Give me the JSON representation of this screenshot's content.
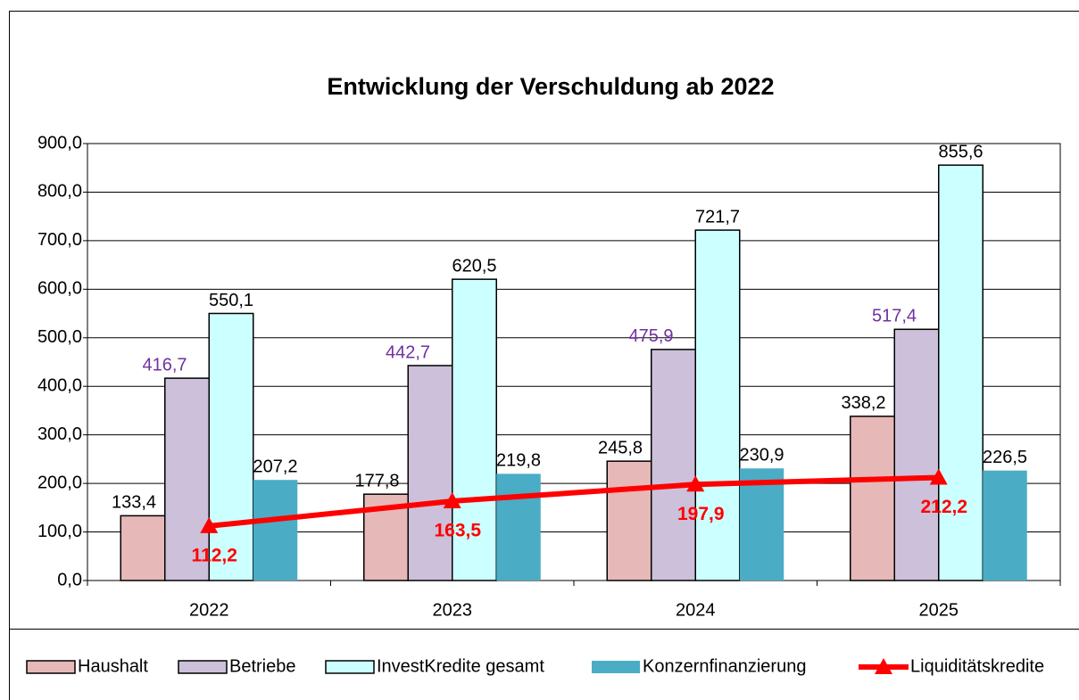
{
  "chart_data": {
    "type": "bar",
    "title": "Entwicklung der Verschuldung ab 2022",
    "categories": [
      "2022",
      "2023",
      "2024",
      "2025"
    ],
    "series": [
      {
        "name": "Haushalt",
        "color": "#e6b8b7",
        "outline": "#000000",
        "label_color": "#000000",
        "values": [
          133.4,
          177.8,
          245.8,
          338.2
        ],
        "value_labels": [
          "133,4",
          "177,8",
          "245,8",
          "338,2"
        ]
      },
      {
        "name": "Betriebe",
        "color": "#ccc0da",
        "outline": "#000000",
        "label_color": "#7030a0",
        "values": [
          416.7,
          442.7,
          475.9,
          517.4
        ],
        "value_labels": [
          "416,7",
          "442,7",
          "475,9",
          "517,4"
        ]
      },
      {
        "name": "InvestKredite gesamt",
        "color": "#ccffff",
        "outline": "#000000",
        "label_color": "#000000",
        "values": [
          550.1,
          620.5,
          721.7,
          855.6
        ],
        "value_labels": [
          "550,1",
          "620,5",
          "721,7",
          "855,6"
        ]
      },
      {
        "name": "Konzernfinanzierung",
        "color": "#4bacc6",
        "label_color": "#000000",
        "values": [
          207.2,
          219.8,
          230.9,
          226.5
        ],
        "value_labels": [
          "207,2",
          "219,8",
          "230,9",
          "226,5"
        ]
      },
      {
        "name": "Liquiditätskredite",
        "type": "line",
        "color": "#ff0000",
        "label_color": "#ff0000",
        "values": [
          112.2,
          163.5,
          197.9,
          212.2
        ],
        "value_labels": [
          "112,2",
          "163,5",
          "197,9",
          "212,2"
        ]
      }
    ],
    "ylim": [
      0,
      900
    ],
    "yticks": [
      {
        "value": 0,
        "label": "0,0"
      },
      {
        "value": 100,
        "label": "100,0"
      },
      {
        "value": 200,
        "label": "200,0"
      },
      {
        "value": 300,
        "label": "300,0"
      },
      {
        "value": 400,
        "label": "400,0"
      },
      {
        "value": 500,
        "label": "500,0"
      },
      {
        "value": 600,
        "label": "600,0"
      },
      {
        "value": 700,
        "label": "700,0"
      },
      {
        "value": 800,
        "label": "800,0"
      },
      {
        "value": 900,
        "label": "900,0"
      }
    ],
    "grid": true,
    "legend": "bottom"
  }
}
